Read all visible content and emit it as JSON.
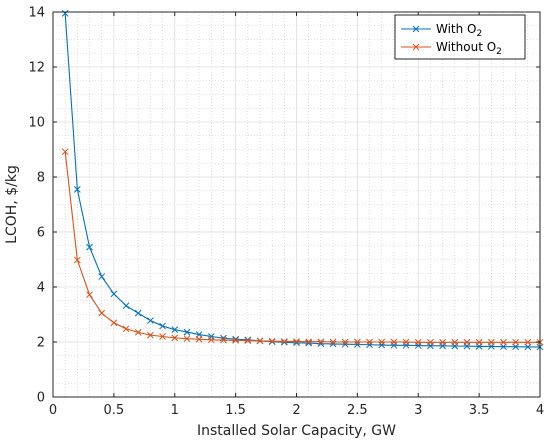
{
  "chart_data": {
    "type": "line",
    "xlabel": "Installed Solar Capacity, GW",
    "ylabel": "LCOH, $/kg",
    "xlim": [
      0,
      4
    ],
    "ylim": [
      0,
      14
    ],
    "xticks": [
      "0",
      "0.5",
      "1",
      "1.5",
      "2",
      "2.5",
      "3",
      "3.5",
      "4"
    ],
    "yticks": [
      "0",
      "2",
      "4",
      "6",
      "8",
      "10",
      "12",
      "14"
    ],
    "grid": "on (major and minor)",
    "legend_position": "top-right",
    "marker": "x",
    "x": [
      0.1,
      0.2,
      0.3,
      0.4,
      0.5,
      0.6,
      0.7,
      0.8,
      0.9,
      1.0,
      1.1,
      1.2,
      1.3,
      1.4,
      1.5,
      1.6,
      1.7,
      1.8,
      1.9,
      2.0,
      2.1,
      2.2,
      2.3,
      2.4,
      2.5,
      2.6,
      2.7,
      2.8,
      2.9,
      3.0,
      3.1,
      3.2,
      3.3,
      3.4,
      3.5,
      3.6,
      3.7,
      3.8,
      3.9,
      4.0
    ],
    "series": [
      {
        "name": "With O2",
        "legend_main": "With O",
        "legend_sub": "2",
        "color": "#0072BD",
        "values": [
          13.95,
          7.55,
          5.45,
          4.38,
          3.75,
          3.32,
          3.05,
          2.78,
          2.58,
          2.45,
          2.36,
          2.27,
          2.2,
          2.14,
          2.1,
          2.08,
          2.04,
          2.01,
          1.99,
          1.97,
          1.96,
          1.94,
          1.93,
          1.92,
          1.91,
          1.9,
          1.89,
          1.88,
          1.88,
          1.87,
          1.86,
          1.86,
          1.85,
          1.85,
          1.84,
          1.84,
          1.83,
          1.83,
          1.82,
          1.82
        ]
      },
      {
        "name": "Without O2",
        "legend_main": "Without O",
        "legend_sub": "2",
        "color": "#D95319",
        "values": [
          8.92,
          4.98,
          3.72,
          3.05,
          2.7,
          2.48,
          2.35,
          2.25,
          2.2,
          2.15,
          2.12,
          2.1,
          2.08,
          2.07,
          2.06,
          2.05,
          2.04,
          2.03,
          2.02,
          2.02,
          2.01,
          2.01,
          2.0,
          2.0,
          2.0,
          2.0,
          2.0,
          2.0,
          2.0,
          1.99,
          1.99,
          1.99,
          1.99,
          1.99,
          1.99,
          1.99,
          1.99,
          1.99,
          1.99,
          1.99
        ]
      }
    ]
  }
}
